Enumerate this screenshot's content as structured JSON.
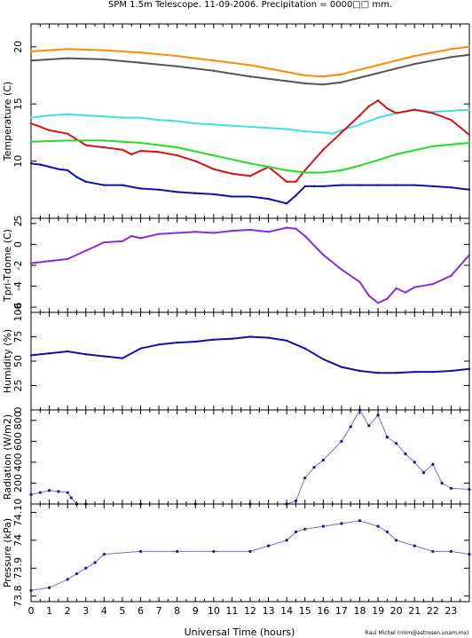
{
  "title": "SPM 1.5m Telescope. 11-09-2006. Precipitation = 0000□□ mm.",
  "credit": "Raul Michel (rmm@astrosen.unam.mx)",
  "xlabel": "Universal Time (hours)",
  "x_ticks": [
    "0",
    "1",
    "2",
    "3",
    "4",
    "5",
    "6",
    "7",
    "8",
    "9",
    "10",
    "11",
    "12",
    "13",
    "14",
    "15",
    "16",
    "17",
    "18",
    "19",
    "20",
    "21",
    "22",
    "23"
  ],
  "colors": {
    "orange": "#ff8c00",
    "gray": "#555555",
    "cyan": "#40e0e8",
    "red": "#dd1111",
    "green": "#22dd22",
    "blue": "#1010b0",
    "purple": "#8a2be2"
  },
  "chart_data": [
    {
      "type": "line",
      "ylabel": "Temperature (C)",
      "y_ticks": [
        "5",
        "10",
        "15",
        "20"
      ],
      "ylim": [
        5,
        22
      ],
      "xlim": [
        0,
        24
      ],
      "series": [
        {
          "color": "orange",
          "x": [
            0,
            2,
            4,
            6,
            8,
            10,
            12,
            14,
            15,
            16,
            17,
            18,
            19,
            20,
            21,
            22,
            23,
            24
          ],
          "y": [
            19.6,
            19.8,
            19.7,
            19.5,
            19.2,
            18.8,
            18.4,
            17.8,
            17.5,
            17.4,
            17.6,
            18.0,
            18.4,
            18.8,
            19.2,
            19.5,
            19.8,
            20.0
          ]
        },
        {
          "color": "gray",
          "x": [
            0,
            2,
            4,
            6,
            8,
            10,
            12,
            14,
            15,
            16,
            17,
            18,
            19,
            20,
            21,
            22,
            23,
            24
          ],
          "y": [
            18.8,
            19.0,
            18.9,
            18.6,
            18.3,
            17.9,
            17.4,
            17.0,
            16.8,
            16.7,
            16.9,
            17.3,
            17.7,
            18.1,
            18.5,
            18.8,
            19.1,
            19.3
          ]
        },
        {
          "color": "cyan",
          "x": [
            0,
            1,
            2,
            3,
            4,
            5,
            6,
            7,
            8,
            9,
            10,
            11,
            12,
            13,
            14,
            15,
            16,
            16.5,
            17,
            18,
            19,
            20,
            21,
            22,
            23,
            24
          ],
          "y": [
            13.8,
            14.0,
            14.1,
            14.0,
            13.9,
            13.8,
            13.8,
            13.6,
            13.5,
            13.3,
            13.2,
            13.1,
            13.0,
            12.9,
            12.8,
            12.6,
            12.5,
            12.4,
            12.7,
            13.2,
            13.8,
            14.2,
            14.5,
            14.3,
            14.4,
            14.5
          ]
        },
        {
          "color": "red",
          "x": [
            0,
            1,
            2,
            3,
            4,
            5,
            5.5,
            6,
            7,
            8,
            9,
            10,
            11,
            12,
            13,
            14,
            14.5,
            15,
            16,
            17,
            18,
            18.5,
            19,
            19.5,
            20,
            21,
            22,
            23,
            24
          ],
          "y": [
            13.3,
            12.7,
            12.4,
            11.4,
            11.2,
            11.0,
            10.6,
            10.9,
            10.8,
            10.5,
            10.0,
            9.3,
            8.9,
            8.7,
            9.5,
            8.2,
            8.2,
            9.2,
            11.0,
            12.5,
            14.0,
            14.8,
            15.3,
            14.6,
            14.2,
            14.5,
            14.2,
            13.6,
            12.3
          ]
        },
        {
          "color": "green",
          "x": [
            0,
            2,
            4,
            6,
            8,
            10,
            12,
            14,
            15,
            16,
            17,
            18,
            20,
            22,
            24
          ],
          "y": [
            11.7,
            11.8,
            11.8,
            11.6,
            11.2,
            10.5,
            9.8,
            9.2,
            9.0,
            9.0,
            9.2,
            9.6,
            10.6,
            11.3,
            11.6
          ]
        },
        {
          "color": "blue",
          "x": [
            0,
            0.5,
            1,
            1.5,
            2,
            2.5,
            3,
            4,
            5,
            6,
            7,
            8,
            9,
            10,
            11,
            12,
            13,
            14,
            14.5,
            15,
            15.5,
            16,
            17,
            18,
            19,
            20,
            21,
            22,
            23,
            24
          ],
          "y": [
            9.8,
            9.7,
            9.5,
            9.3,
            9.2,
            8.6,
            8.2,
            7.9,
            7.9,
            7.6,
            7.5,
            7.3,
            7.2,
            7.1,
            6.9,
            6.9,
            6.7,
            6.3,
            7.0,
            7.8,
            7.8,
            7.8,
            7.9,
            7.9,
            7.9,
            7.9,
            7.9,
            7.8,
            7.7,
            7.5
          ]
        }
      ]
    },
    {
      "type": "line",
      "ylabel": "Tpri-Tdome (C)",
      "y_ticks": [
        "-6",
        "-4",
        "-2",
        "0",
        "2"
      ],
      "ylim": [
        -6.5,
        2.5
      ],
      "xlim": [
        0,
        24
      ],
      "series": [
        {
          "color": "purple",
          "x": [
            0,
            1,
            2,
            3,
            4,
            5,
            5.5,
            6,
            7,
            8,
            9,
            10,
            11,
            12,
            13,
            14,
            14.5,
            15,
            16,
            17,
            18,
            18.5,
            19,
            19.5,
            20,
            20.5,
            21,
            22,
            23,
            24
          ],
          "y": [
            -1.8,
            -1.6,
            -1.4,
            -0.6,
            0.2,
            0.3,
            0.8,
            0.6,
            1.0,
            1.1,
            1.2,
            1.1,
            1.3,
            1.4,
            1.2,
            1.6,
            1.5,
            0.8,
            -1.0,
            -2.4,
            -3.6,
            -4.9,
            -5.6,
            -5.2,
            -4.2,
            -4.6,
            -4.1,
            -3.8,
            -3.0,
            -1.0
          ]
        }
      ]
    },
    {
      "type": "line",
      "ylabel": "Humidity (%)",
      "y_ticks": [
        "0",
        "25",
        "50",
        "75",
        "100"
      ],
      "ylim": [
        0,
        100
      ],
      "xlim": [
        0,
        24
      ],
      "series": [
        {
          "color": "blue",
          "x": [
            0,
            1,
            2,
            3,
            4,
            5,
            6,
            7,
            8,
            9,
            10,
            11,
            12,
            13,
            14,
            15,
            16,
            17,
            18,
            19,
            20,
            21,
            22,
            23,
            24
          ],
          "y": [
            56,
            58,
            60,
            57,
            55,
            53,
            63,
            67,
            69,
            70,
            72,
            73,
            75,
            74,
            71,
            63,
            52,
            44,
            40,
            38,
            38,
            39,
            39,
            40,
            42
          ]
        }
      ]
    },
    {
      "type": "scatter",
      "ylabel": "Radiation (W/m2)",
      "y_ticks": [
        "200",
        "400",
        "600",
        "800"
      ],
      "ylim": [
        0,
        900
      ],
      "xlim": [
        0,
        24
      ],
      "series": [
        {
          "color": "blue",
          "x": [
            0,
            0.5,
            1,
            1.5,
            2,
            2.2,
            2.5,
            3,
            6,
            9,
            12,
            14,
            14.5,
            15,
            15.5,
            16,
            17,
            17.5,
            18,
            18.5,
            19,
            19.5,
            20,
            20.5,
            21,
            21.5,
            22,
            22.5,
            23,
            24
          ],
          "y": [
            90,
            110,
            130,
            120,
            110,
            60,
            0,
            0,
            0,
            0,
            0,
            0,
            30,
            250,
            350,
            420,
            600,
            740,
            900,
            750,
            850,
            640,
            580,
            480,
            400,
            300,
            380,
            200,
            150,
            140
          ]
        }
      ]
    },
    {
      "type": "scatter",
      "ylabel": "Pressure (kPa)",
      "y_ticks": [
        "73.8",
        "73.9",
        "74",
        "74.10"
      ],
      "ylim": [
        73.78,
        74.13
      ],
      "xlim": [
        0,
        24
      ],
      "series": [
        {
          "color": "blue",
          "x": [
            0,
            1,
            2,
            2.5,
            3,
            3.5,
            4,
            6,
            8,
            10,
            12,
            13,
            14,
            14.5,
            15,
            16,
            17,
            18,
            19,
            19.5,
            20,
            21,
            22,
            23,
            24
          ],
          "y": [
            73.82,
            73.83,
            73.86,
            73.88,
            73.9,
            73.92,
            73.95,
            73.96,
            73.96,
            73.96,
            73.96,
            73.98,
            74.0,
            74.03,
            74.04,
            74.05,
            74.06,
            74.07,
            74.05,
            74.03,
            74.0,
            73.98,
            73.96,
            73.96,
            73.95
          ]
        }
      ]
    }
  ]
}
